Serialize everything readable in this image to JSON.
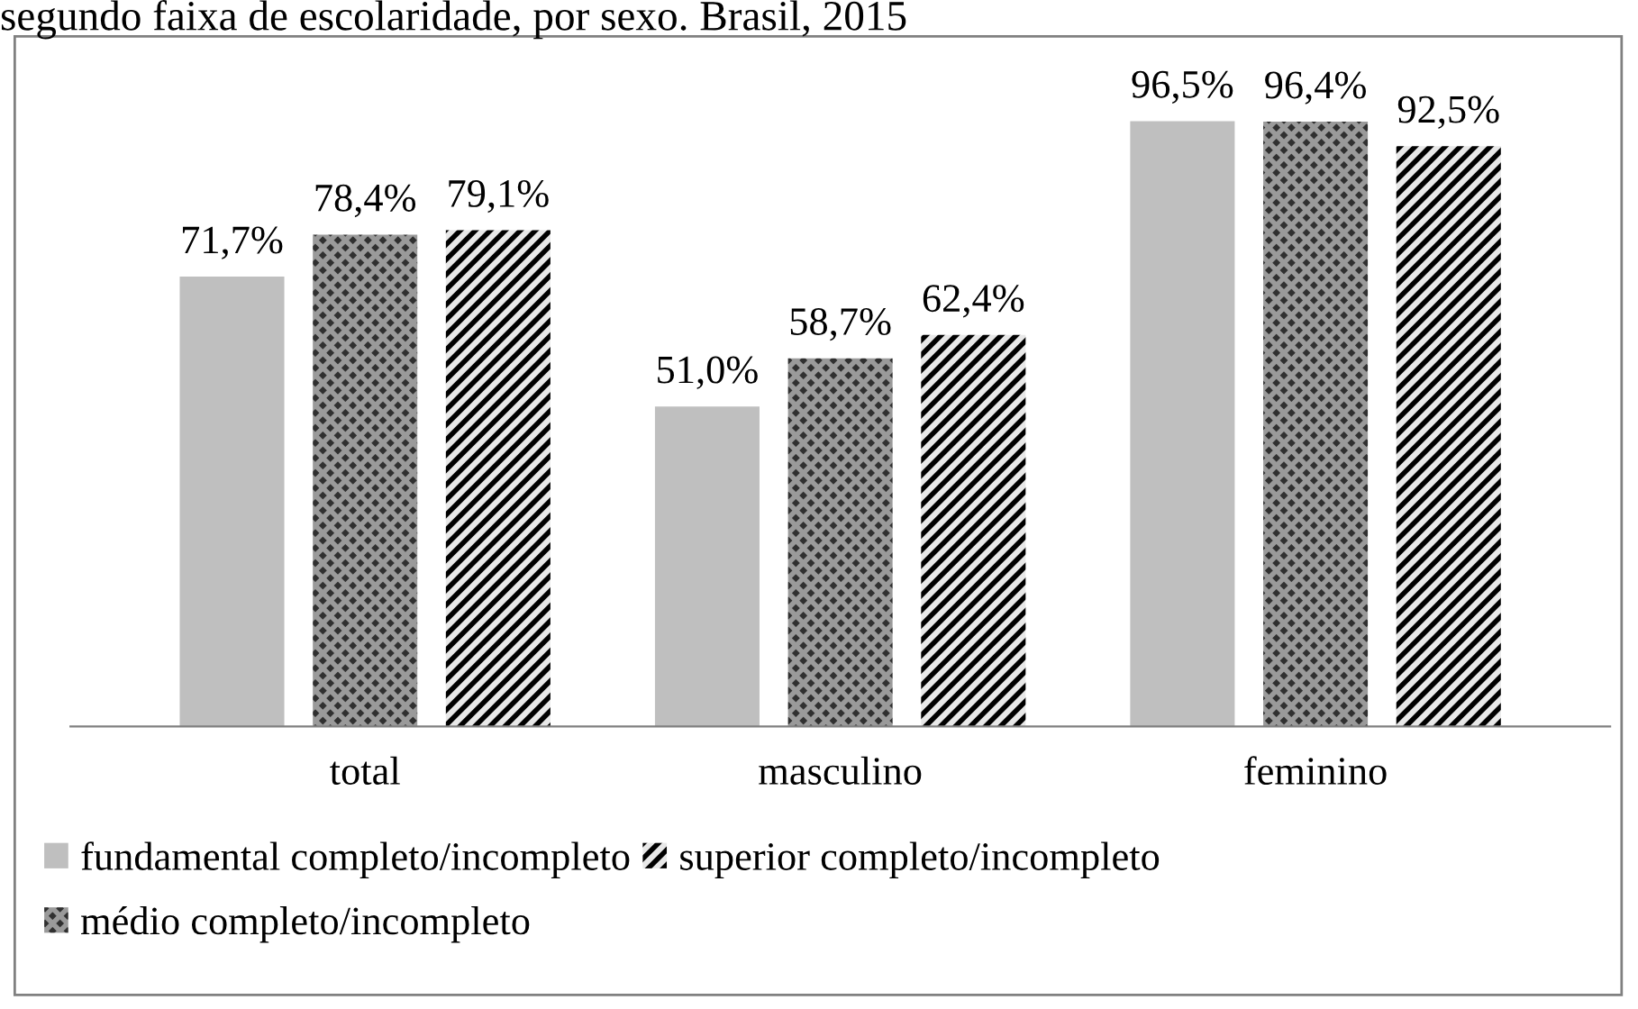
{
  "chart_data": {
    "type": "bar",
    "title": "segundo faixa de escolaridade, por sexo. Brasil, 2015",
    "categories": [
      "total",
      "masculino",
      "feminino"
    ],
    "series": [
      {
        "name": "fundamental completo/incompleto",
        "color": "#bfbfbf",
        "values": [
          71.7,
          51.0,
          96.5
        ],
        "value_labels": [
          "71,7%",
          "51,0%",
          "96,5%"
        ]
      },
      {
        "name": "médio completo/incompleto",
        "color": "#303030",
        "values": [
          78.4,
          58.7,
          96.4
        ],
        "value_labels": [
          "78,4%",
          "58,7%",
          "96,4%"
        ]
      },
      {
        "name": "superior completo/incompleto",
        "color": "#000000",
        "values": [
          79.1,
          62.4,
          92.5
        ],
        "value_labels": [
          "79,1%",
          "62,4%",
          "92,5%"
        ]
      }
    ],
    "legend": "bottom",
    "grid": false
  }
}
